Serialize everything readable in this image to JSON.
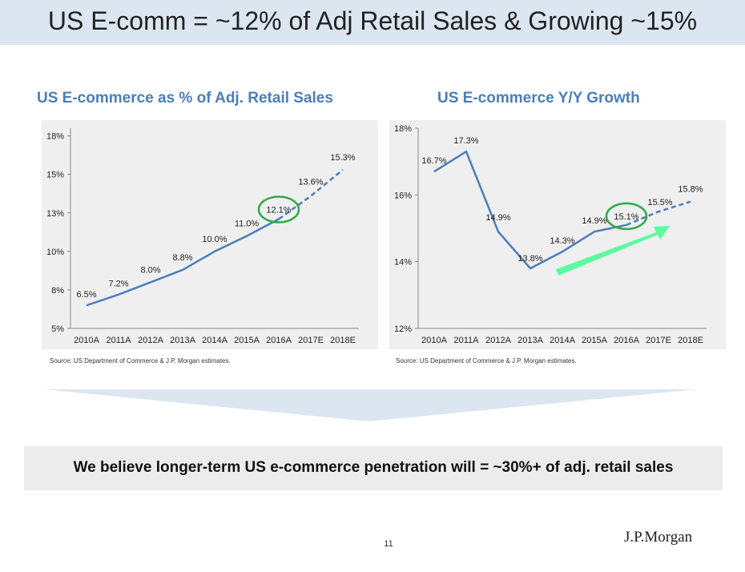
{
  "page": {
    "title": "US E-comm = ~12% of Adj Retail Sales & Growing ~15%",
    "message": "We believe longer-term US e-commerce penetration will = ~30%+ of adj. retail sales",
    "page_number": "11",
    "logo": "J.P.Morgan"
  },
  "colors": {
    "line": "#4a7ebb",
    "highlight_circle": "#2eaa4a",
    "arrow": "#5dfaa0",
    "title_bar": "#dce6f1"
  },
  "chart_data": [
    {
      "type": "line",
      "title": "US E-commerce as % of Adj. Retail Sales",
      "source": "Source: US Department of Commerce & J.P. Morgan estimates.",
      "categories": [
        "2010A",
        "2011A",
        "2012A",
        "2013A",
        "2014A",
        "2015A",
        "2016A",
        "2017E",
        "2018E"
      ],
      "values": [
        6.5,
        7.2,
        8.0,
        8.8,
        10.0,
        11.0,
        12.1,
        13.6,
        15.3
      ],
      "data_labels": [
        "6.5%",
        "7.2%",
        "8.0%",
        "8.8%",
        "10.0%",
        "11.0%",
        "12.1%",
        "13.6%",
        "15.3%"
      ],
      "solid_until_index": 6,
      "highlight_index": 6,
      "ylim": [
        5,
        18
      ],
      "yticks": [
        5,
        7.5,
        10,
        12.5,
        15,
        17.5
      ],
      "ytick_labels": [
        "5%",
        "8%",
        "10%",
        "13%",
        "15%",
        "18%"
      ]
    },
    {
      "type": "line",
      "title": "US E-commerce Y/Y Growth",
      "source": "Source: US Department of Commerce & J.P. Morgan estimates.",
      "categories": [
        "2010A",
        "2011A",
        "2012A",
        "2013A",
        "2014A",
        "2015A",
        "2016A",
        "2017E",
        "2018E"
      ],
      "values": [
        16.7,
        17.3,
        14.9,
        13.8,
        14.3,
        14.9,
        15.1,
        15.5,
        15.8
      ],
      "data_labels": [
        "16.7%",
        "17.3%",
        "14.9%",
        "13.8%",
        "14.3%",
        "14.9%",
        "15.1%",
        "15.5%",
        "15.8%"
      ],
      "solid_until_index": 6,
      "highlight_index": 6,
      "ylim": [
        12,
        18
      ],
      "yticks": [
        12,
        14,
        16,
        18
      ],
      "ytick_labels": [
        "12%",
        "14%",
        "16%",
        "18%"
      ],
      "trend_arrow": true
    }
  ]
}
